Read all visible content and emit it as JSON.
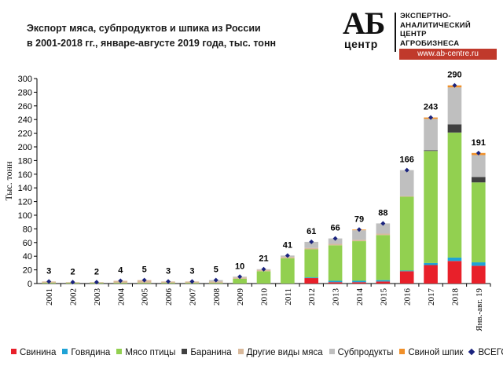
{
  "header": {
    "title_line1": "Экспорт мяса, субпродуктов  и шпика из России",
    "title_line2": "в 2001-2018 гг., январе-августе  2019 года, тыс. тонн"
  },
  "logo": {
    "mark": "АБ",
    "sub": "центр",
    "line1": "ЭКСПЕРТНО-",
    "line2": "АНАЛИТИЧЕСКИЙ",
    "line3": "ЦЕНТР",
    "line4": "АГРОБИЗНЕСА",
    "site": "www.ab-centre.ru"
  },
  "chart_data": {
    "type": "bar",
    "stacked": true,
    "categories": [
      "2001",
      "2002",
      "2003",
      "2004",
      "2005",
      "2006",
      "2007",
      "2008",
      "2009",
      "2010",
      "2011",
      "2012",
      "2013",
      "2014",
      "2015",
      "2016",
      "2017",
      "2018",
      "Янв.-авг. 19"
    ],
    "ylabel": "Тыс. тонн",
    "ylim": [
      0,
      300
    ],
    "yticks": [
      0,
      20,
      40,
      60,
      80,
      100,
      120,
      140,
      160,
      180,
      200,
      220,
      240,
      260,
      280,
      300
    ],
    "grid": false,
    "legend_position": "bottom",
    "series": [
      {
        "name": "Свинина",
        "color": "#e8202a",
        "values": [
          0,
          0,
          0,
          0,
          0,
          0,
          0,
          0,
          0,
          0,
          0,
          8,
          2,
          2,
          3,
          18,
          27,
          33,
          26
        ]
      },
      {
        "name": "Говядина",
        "color": "#1fa3d6",
        "values": [
          0,
          0,
          0,
          0,
          0,
          0,
          0,
          0,
          0,
          0,
          0,
          1,
          2,
          2,
          2,
          1,
          3,
          5,
          5
        ]
      },
      {
        "name": "Мясо птицы",
        "color": "#92d050",
        "values": [
          1,
          1,
          1,
          1,
          1,
          1,
          1,
          1,
          7,
          18,
          37,
          41,
          52,
          58,
          66,
          108,
          164,
          183,
          117
        ]
      },
      {
        "name": "Баранина",
        "color": "#404040",
        "values": [
          0,
          0,
          0,
          0,
          0,
          0,
          0,
          0,
          0,
          0,
          0,
          0,
          0,
          0,
          0,
          0,
          1,
          12,
          8
        ]
      },
      {
        "name": "Другие виды мяса",
        "color": "#d9b99b",
        "values": [
          2,
          1,
          1,
          3,
          4,
          2,
          2,
          2,
          2,
          2,
          2,
          2,
          2,
          2,
          2,
          1,
          0,
          0,
          0
        ]
      },
      {
        "name": "Субпродукты",
        "color": "#bfbfbf",
        "values": [
          0,
          0,
          0,
          0,
          0,
          0,
          0,
          2,
          1,
          1,
          2,
          9,
          8,
          14,
          15,
          38,
          46,
          54,
          32
        ]
      },
      {
        "name": "Свиной шпик",
        "color": "#f0902a",
        "values": [
          0,
          0,
          0,
          0,
          0,
          0,
          0,
          0,
          0,
          0,
          0,
          0,
          0,
          1,
          0,
          0,
          2,
          3,
          3
        ]
      }
    ],
    "total": {
      "name": "ВСЕГО",
      "color": "#1a237e",
      "values": [
        3,
        2,
        2,
        4,
        5,
        3,
        3,
        5,
        10,
        21,
        41,
        61,
        66,
        79,
        88,
        166,
        243,
        290,
        191
      ]
    }
  }
}
